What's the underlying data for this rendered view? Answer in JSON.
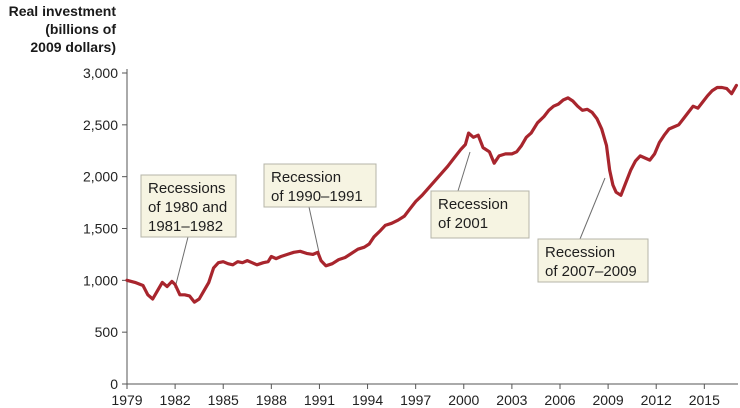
{
  "chart_data": {
    "type": "line",
    "ylabel_lines": [
      "Real investment",
      "(billions of",
      "2009 dollars)"
    ],
    "xlabel": "",
    "xlim": [
      1979,
      2017.1
    ],
    "ylim": [
      0,
      3000
    ],
    "yticks": [
      0,
      500,
      1000,
      1500,
      2000,
      2500,
      3000
    ],
    "ytick_labels": [
      "0",
      "500",
      "1,000",
      "1,500",
      "2,000",
      "2,500",
      "3,000"
    ],
    "xticks": [
      1979,
      1982,
      1985,
      1988,
      1991,
      1994,
      1997,
      2000,
      2003,
      2006,
      2009,
      2012,
      2015
    ],
    "xtick_labels": [
      "1979",
      "1982",
      "1985",
      "1988",
      "1991",
      "1994",
      "1997",
      "2000",
      "2003",
      "2006",
      "2009",
      "2012",
      "2015"
    ],
    "grid": false,
    "line_color": "#a8252d",
    "series": [
      {
        "x": [
          1979.0,
          1979.5,
          1980.0,
          1980.3,
          1980.6,
          1980.9,
          1981.2,
          1981.5,
          1981.8,
          1982.0,
          1982.3,
          1982.6,
          1982.9,
          1983.2,
          1983.5,
          1983.8,
          1984.1,
          1984.4,
          1984.7,
          1985.0,
          1985.3,
          1985.6,
          1985.9,
          1986.2,
          1986.5,
          1986.8,
          1987.1,
          1987.5,
          1987.8,
          1988.0,
          1988.3,
          1988.6,
          1989.0,
          1989.4,
          1989.8,
          1990.2,
          1990.6,
          1990.9,
          1991.1,
          1991.4,
          1991.8,
          1992.2,
          1992.6,
          1993.0,
          1993.4,
          1993.8,
          1994.1,
          1994.4,
          1994.8,
          1995.1,
          1995.5,
          1995.9,
          1996.3,
          1996.6,
          1997.0,
          1997.4,
          1997.8,
          1998.2,
          1998.6,
          1999.0,
          1999.4,
          1999.8,
          2000.1,
          2000.3,
          2000.6,
          2000.9,
          2001.2,
          2001.6,
          2001.9,
          2002.2,
          2002.6,
          2003.0,
          2003.3,
          2003.6,
          2003.9,
          2004.2,
          2004.6,
          2005.0,
          2005.3,
          2005.6,
          2005.9,
          2006.2,
          2006.5,
          2006.8,
          2007.1,
          2007.4,
          2007.7,
          2008.0,
          2008.3,
          2008.6,
          2008.9,
          2009.1,
          2009.3,
          2009.5,
          2009.8,
          2010.1,
          2010.4,
          2010.7,
          2011.0,
          2011.3,
          2011.6,
          2011.9,
          2012.2,
          2012.5,
          2012.8,
          2013.1,
          2013.4,
          2013.7,
          2014.0,
          2014.3,
          2014.6,
          2014.9,
          2015.2,
          2015.5,
          2015.8,
          2016.1,
          2016.4,
          2016.7,
          2017.0
        ],
        "y": [
          1000,
          980,
          950,
          860,
          820,
          900,
          980,
          940,
          990,
          960,
          860,
          860,
          850,
          790,
          820,
          900,
          980,
          1120,
          1170,
          1180,
          1160,
          1150,
          1180,
          1170,
          1190,
          1170,
          1150,
          1170,
          1180,
          1230,
          1210,
          1230,
          1250,
          1270,
          1280,
          1260,
          1250,
          1270,
          1190,
          1140,
          1160,
          1200,
          1220,
          1260,
          1300,
          1320,
          1350,
          1420,
          1480,
          1530,
          1550,
          1580,
          1620,
          1680,
          1760,
          1820,
          1890,
          1960,
          2030,
          2100,
          2180,
          2260,
          2310,
          2420,
          2380,
          2400,
          2280,
          2240,
          2130,
          2200,
          2220,
          2220,
          2240,
          2300,
          2380,
          2420,
          2520,
          2580,
          2640,
          2680,
          2700,
          2740,
          2760,
          2730,
          2680,
          2640,
          2650,
          2620,
          2560,
          2460,
          2300,
          2060,
          1920,
          1850,
          1820,
          1940,
          2060,
          2150,
          2200,
          2180,
          2160,
          2220,
          2330,
          2400,
          2460,
          2480,
          2500,
          2560,
          2620,
          2680,
          2660,
          2720,
          2780,
          2830,
          2860,
          2860,
          2850,
          2800,
          2880
        ]
      }
    ],
    "annotations": [
      {
        "lines": [
          "Recessions",
          "of 1980 and",
          "1981–1982"
        ]
      },
      {
        "lines": [
          "Recession",
          "of 1990–1991"
        ]
      },
      {
        "lines": [
          "Recession",
          "of 2001"
        ]
      },
      {
        "lines": [
          "Recession",
          "of 2007–2009"
        ]
      }
    ]
  }
}
